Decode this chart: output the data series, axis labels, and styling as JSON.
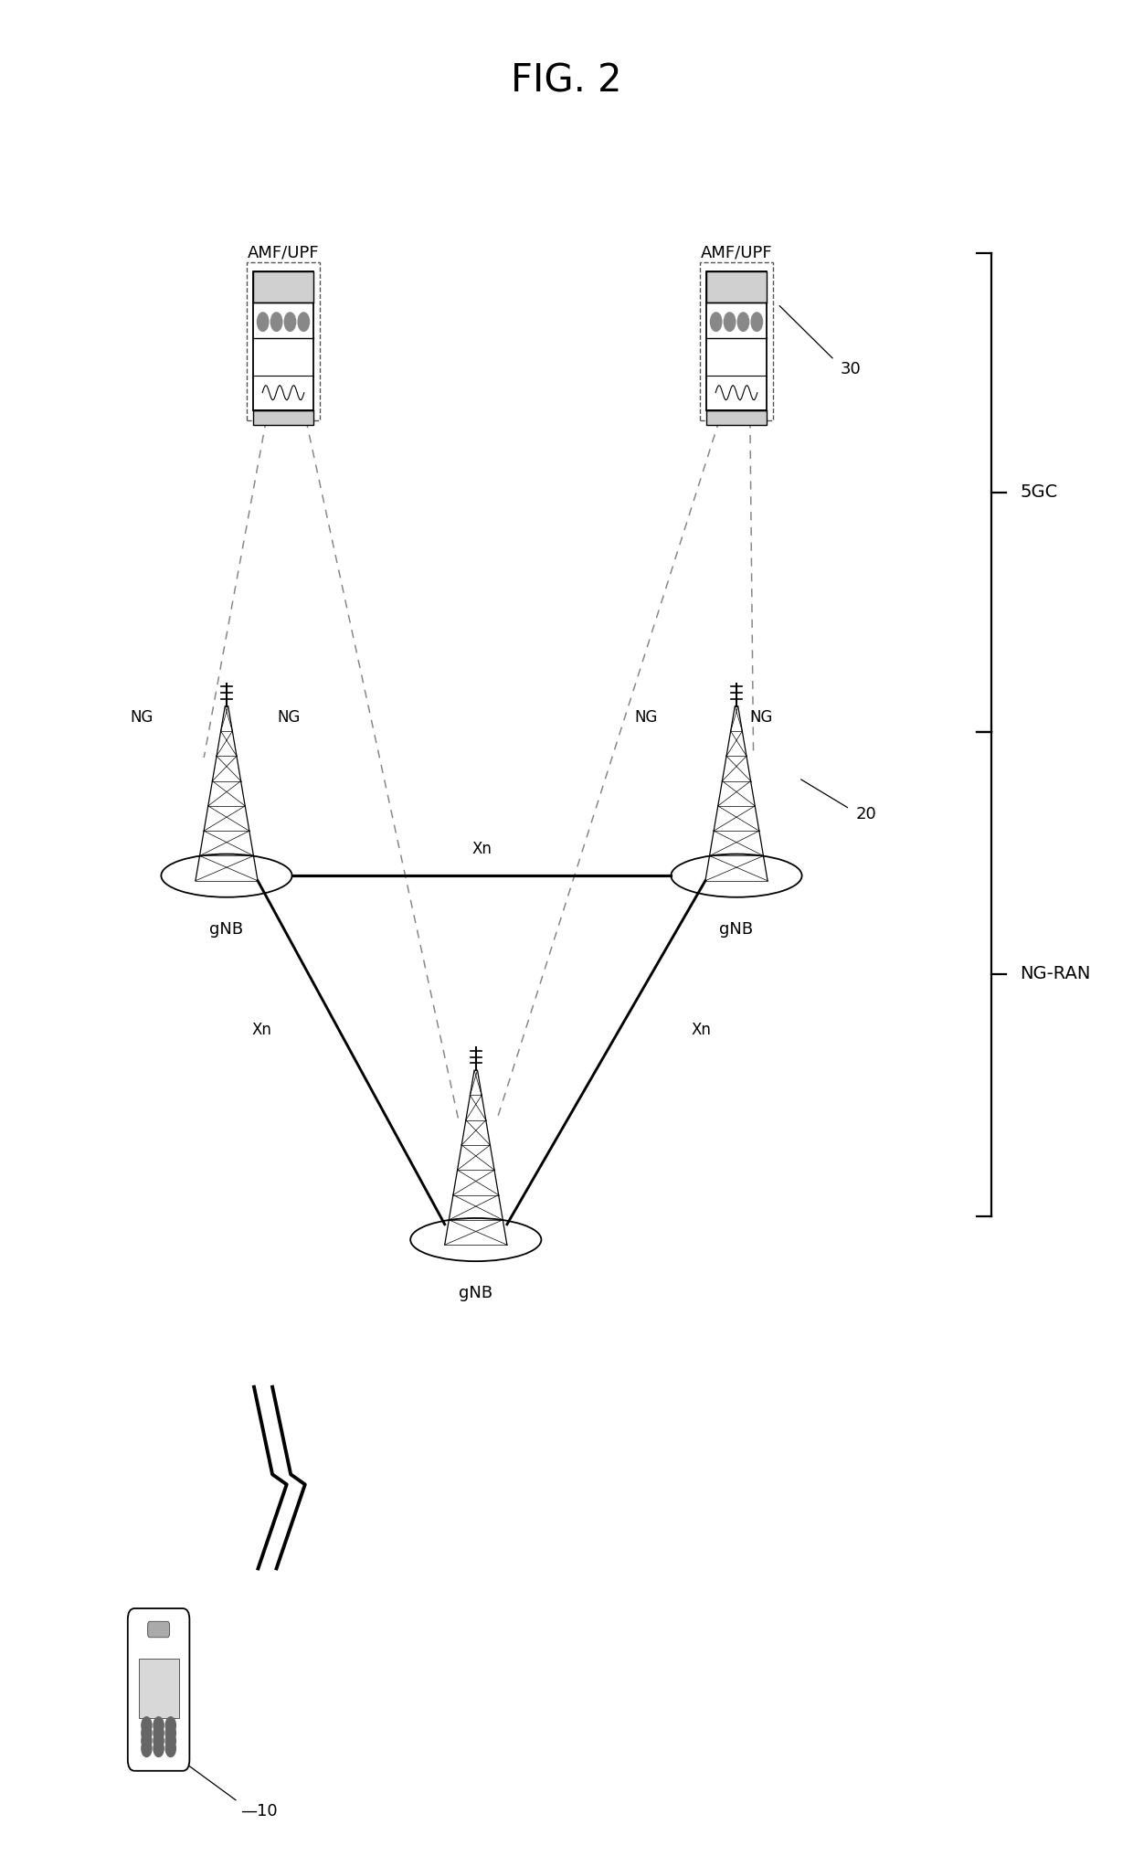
{
  "title": "FIG. 2",
  "bg_color": "#ffffff",
  "fig_width": 12.4,
  "fig_height": 20.43,
  "server_label_left": "AMF/UPF",
  "server_label_right": "AMF/UPF",
  "slx": 0.25,
  "srx": 0.65,
  "sy": 0.78,
  "glx": 0.2,
  "grx": 0.65,
  "gmx": 0.42,
  "gly": 0.575,
  "gmy": 0.38,
  "uex": 0.14,
  "uey": 0.095,
  "label_5gc": "5GC",
  "label_ngran": "NG-RAN",
  "label_30": "30",
  "label_20": "20",
  "label_10": "10"
}
